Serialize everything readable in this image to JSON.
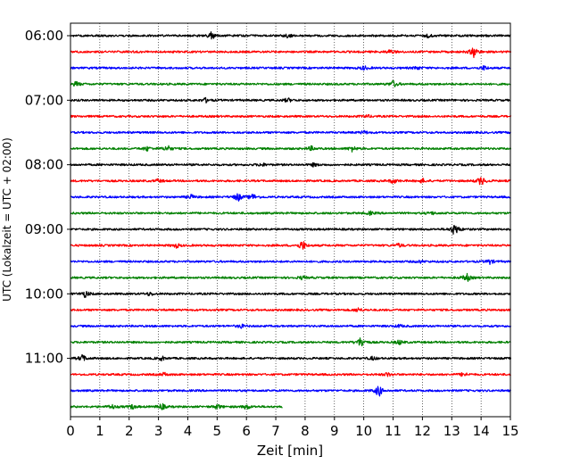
{
  "chart_data": {
    "type": "line",
    "title": "",
    "xlabel": "Zeit  [min]",
    "ylabel": "UTC (Lokalzeit = UTC + 02:00)",
    "xlim": [
      0,
      15
    ],
    "x_ticks": [
      "0",
      "1",
      "2",
      "3",
      "4",
      "5",
      "6",
      "7",
      "8",
      "9",
      "10",
      "11",
      "12",
      "13",
      "14",
      "15"
    ],
    "y_tick_labels": [
      "06:00",
      "07:00",
      "08:00",
      "09:00",
      "10:00",
      "11:00"
    ],
    "grid": "vertical dotted lines at each minute",
    "trace_interval_minutes": 15,
    "traces": [
      {
        "start": "06:00",
        "color": "#000000",
        "duration_min": 15,
        "events": [
          [
            4.8,
            2.8
          ],
          [
            7.4,
            1.4
          ],
          [
            12.2,
            1.2
          ]
        ]
      },
      {
        "start": "06:15",
        "color": "#ff0000",
        "duration_min": 15,
        "events": [
          [
            10.9,
            1.6
          ],
          [
            13.75,
            4.5
          ]
        ]
      },
      {
        "start": "06:30",
        "color": "#0000ff",
        "duration_min": 15,
        "events": [
          [
            10.0,
            1.4
          ],
          [
            11.8,
            1.2
          ],
          [
            14.1,
            1.6
          ]
        ]
      },
      {
        "start": "06:45",
        "color": "#008000",
        "duration_min": 15,
        "events": [
          [
            0.2,
            1.6
          ],
          [
            11.0,
            2.6
          ]
        ]
      },
      {
        "start": "07:00",
        "color": "#000000",
        "duration_min": 15,
        "events": [
          [
            4.6,
            1.6
          ],
          [
            7.4,
            1.4
          ]
        ]
      },
      {
        "start": "07:15",
        "color": "#ff0000",
        "duration_min": 15,
        "events": [
          [
            10.1,
            1.0
          ]
        ]
      },
      {
        "start": "07:30",
        "color": "#0000ff",
        "duration_min": 15,
        "events": [
          [
            10.0,
            1.2
          ]
        ]
      },
      {
        "start": "07:45",
        "color": "#008000",
        "duration_min": 15,
        "events": [
          [
            2.6,
            1.6
          ],
          [
            3.3,
            2.4
          ],
          [
            8.2,
            1.6
          ],
          [
            9.6,
            2.2
          ]
        ]
      },
      {
        "start": "08:00",
        "color": "#000000",
        "duration_min": 15,
        "events": [
          [
            6.5,
            1.2
          ],
          [
            8.3,
            1.2
          ]
        ]
      },
      {
        "start": "08:15",
        "color": "#ff0000",
        "duration_min": 15,
        "events": [
          [
            3.0,
            1.2
          ],
          [
            11.0,
            1.8
          ],
          [
            12.0,
            1.4
          ],
          [
            14.0,
            3.6
          ]
        ]
      },
      {
        "start": "08:30",
        "color": "#0000ff",
        "duration_min": 15,
        "events": [
          [
            4.1,
            1.6
          ],
          [
            5.7,
            3.0
          ],
          [
            6.2,
            2.2
          ]
        ]
      },
      {
        "start": "08:45",
        "color": "#008000",
        "duration_min": 15,
        "events": [
          [
            10.2,
            1.2
          ],
          [
            12.3,
            1.0
          ]
        ]
      },
      {
        "start": "09:00",
        "color": "#000000",
        "duration_min": 15,
        "events": [
          [
            13.1,
            4.8
          ]
        ]
      },
      {
        "start": "09:15",
        "color": "#ff0000",
        "duration_min": 15,
        "events": [
          [
            3.6,
            1.6
          ],
          [
            7.9,
            3.6
          ],
          [
            11.2,
            1.4
          ]
        ]
      },
      {
        "start": "09:30",
        "color": "#0000ff",
        "duration_min": 15,
        "events": [
          [
            11.9,
            1.0
          ],
          [
            14.3,
            1.8
          ]
        ]
      },
      {
        "start": "09:45",
        "color": "#008000",
        "duration_min": 15,
        "events": [
          [
            7.9,
            1.2
          ],
          [
            13.5,
            3.0
          ]
        ]
      },
      {
        "start": "10:00",
        "color": "#000000",
        "duration_min": 15,
        "events": [
          [
            0.5,
            2.6
          ],
          [
            2.7,
            1.2
          ]
        ]
      },
      {
        "start": "10:15",
        "color": "#ff0000",
        "duration_min": 15,
        "events": [
          [
            9.8,
            1.6
          ]
        ]
      },
      {
        "start": "10:30",
        "color": "#0000ff",
        "duration_min": 15,
        "events": [
          [
            5.8,
            1.4
          ],
          [
            11.2,
            1.0
          ]
        ]
      },
      {
        "start": "10:45",
        "color": "#008000",
        "duration_min": 15,
        "events": [
          [
            9.9,
            4.2
          ],
          [
            11.2,
            1.6
          ]
        ]
      },
      {
        "start": "11:00",
        "color": "#000000",
        "duration_min": 15,
        "events": [
          [
            0.4,
            2.6
          ],
          [
            3.1,
            1.4
          ],
          [
            10.3,
            1.2
          ]
        ]
      },
      {
        "start": "11:15",
        "color": "#ff0000",
        "duration_min": 15,
        "events": [
          [
            3.2,
            1.2
          ],
          [
            10.8,
            1.4
          ],
          [
            13.4,
            1.6
          ]
        ]
      },
      {
        "start": "11:30",
        "color": "#0000ff",
        "duration_min": 15,
        "events": [
          [
            10.5,
            4.4
          ]
        ]
      },
      {
        "start": "11:45",
        "color": "#008000",
        "duration_min": 7.2,
        "events": [
          [
            1.4,
            1.6
          ],
          [
            2.1,
            1.6
          ],
          [
            3.1,
            2.4
          ],
          [
            5.0,
            1.6
          ],
          [
            6.0,
            1.8
          ]
        ]
      }
    ]
  }
}
